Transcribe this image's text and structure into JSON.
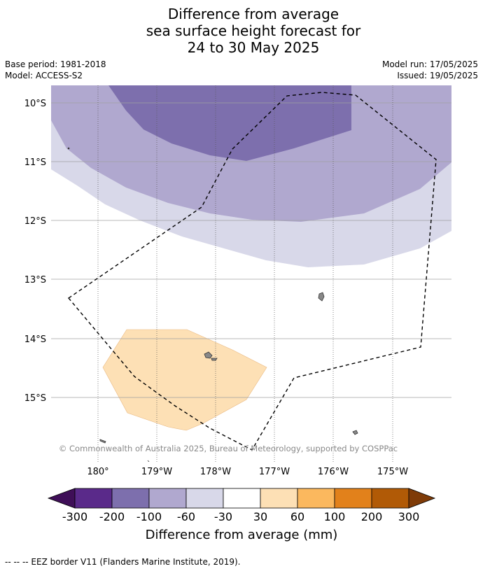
{
  "title": {
    "line1": "Difference from average",
    "line2": "sea surface height forecast for",
    "line3": "24 to 30 May 2025"
  },
  "meta": {
    "base_period": "Base period: 1981-2018",
    "model": "Model: ACCESS-S2",
    "model_run": "Model run: 17/05/2025",
    "issued": "Issued: 19/05/2025"
  },
  "map": {
    "lat_labels": [
      "10°S",
      "11°S",
      "12°S",
      "13°S",
      "14°S",
      "15°S"
    ],
    "lon_labels": [
      "180°",
      "179°W",
      "178°W",
      "177°W",
      "176°W",
      "175°W"
    ],
    "copyright": "© Commonwealth of Australia 2025, Bureau of Meteorology, supported by COSPPac",
    "colors": {
      "minus100_to_minus60": "#b0a8cf",
      "minus200_to_minus100": "#7d6fad",
      "minus60_to_minus30": "#d8d8e9",
      "plus30_to_plus60": "#fde0b5",
      "land": "#888888",
      "eez_border": "#000000"
    }
  },
  "colorbar": {
    "label": "Difference from average (mm)",
    "ticks": [
      "-300",
      "-200",
      "-100",
      "-60",
      "-30",
      "30",
      "60",
      "100",
      "200",
      "300"
    ],
    "colors": [
      "#3f0f58",
      "#5a2a8a",
      "#7d6fad",
      "#b0a8cf",
      "#d8d8e9",
      "#ffffff",
      "#fde0b5",
      "#fbb85e",
      "#e2811b",
      "#b15a06",
      "#7f3b08"
    ]
  },
  "footnote": "-- -- -- EEZ border V11 (Flanders Marine Institute, 2019)."
}
